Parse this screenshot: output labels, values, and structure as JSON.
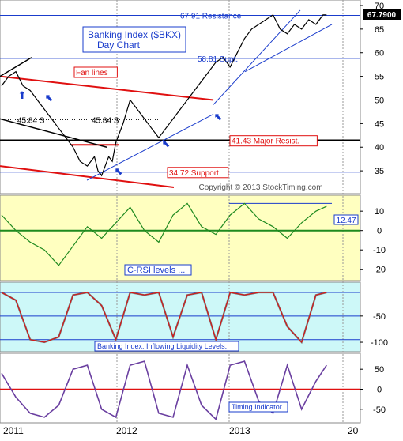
{
  "title_box": {
    "line1": "Banking Index ($BKX)",
    "line2": "Day Chart"
  },
  "copyright": "Copyright © 2013 StockTiming.com",
  "last_price": "67.7900",
  "x_axis": {
    "labels": [
      "2011",
      "2012",
      "2013",
      "20"
    ]
  },
  "colors": {
    "price": "#000000",
    "crsi": "#1f8a1f",
    "flow_red": "#e01010",
    "flow_grey": "#777777",
    "timing": "#6a3fa0",
    "trend": "#1a3ccc",
    "fan": "#e01010",
    "major": "#000000",
    "panel_yellow": "#ffffc0",
    "panel_cyan": "#cdf8f8"
  },
  "chart_data": [
    {
      "type": "line",
      "name": "price_panel",
      "y_ticks": [
        35,
        40,
        45,
        50,
        55,
        60,
        65,
        70
      ],
      "ylim": [
        30.5,
        70.5
      ],
      "xlim": [
        0,
        100
      ],
      "series": [
        {
          "name": "$BKX",
          "x": [
            0,
            2,
            4,
            6,
            8,
            10,
            12,
            14,
            16,
            18,
            20,
            22,
            24,
            26,
            27,
            28,
            29,
            30,
            31,
            32,
            34,
            36,
            38,
            40,
            42,
            44,
            46,
            48,
            50,
            52,
            54,
            56,
            58,
            60,
            62,
            64,
            66,
            68,
            70,
            72,
            74,
            76,
            78,
            80,
            82,
            84,
            86,
            88,
            90,
            91
          ],
          "y": [
            53,
            55,
            56,
            53,
            52,
            50,
            48,
            46,
            44,
            42,
            40,
            37,
            36,
            38,
            35,
            34,
            36,
            38,
            37,
            41,
            45,
            50,
            48,
            46,
            44,
            42,
            44,
            46,
            48,
            50,
            52,
            54,
            56,
            58,
            59,
            57,
            60,
            63,
            65,
            66,
            67,
            68,
            65,
            64,
            66,
            65,
            67,
            66,
            68,
            68
          ]
        }
      ],
      "annotations": [
        {
          "label": "67.91 Resistance",
          "y": 67.91
        },
        {
          "label": "58.81 Supt.",
          "y": 58.81
        },
        {
          "label": "45.84 S",
          "y": 45.84
        },
        {
          "label": "45.84 S",
          "y": 45.84
        },
        {
          "label": "41.43 Major Resist.",
          "y": 41.43
        },
        {
          "label": "34.72 Support",
          "y": 34.72
        },
        {
          "label": "Fan lines",
          "y": null
        }
      ]
    },
    {
      "type": "line",
      "name": "crsi_panel",
      "y_ticks": [
        -20,
        -10,
        0,
        10
      ],
      "ylim": [
        -25,
        17
      ],
      "last_value": "12.47",
      "series": [
        {
          "name": "C-RSI",
          "x": [
            0,
            4,
            8,
            12,
            16,
            20,
            24,
            28,
            32,
            36,
            40,
            44,
            48,
            52,
            56,
            60,
            64,
            68,
            72,
            76,
            80,
            84,
            88,
            91
          ],
          "y": [
            8,
            0,
            -6,
            -10,
            -18,
            -8,
            2,
            -4,
            4,
            12,
            0,
            -6,
            8,
            14,
            2,
            -2,
            8,
            14,
            6,
            2,
            -4,
            4,
            10,
            12.47
          ]
        }
      ],
      "annotations": [
        {
          "label": "C-RSI levels ..."
        }
      ]
    },
    {
      "type": "line",
      "name": "liquidity_panel",
      "y_ticks": [
        -50,
        -100
      ],
      "ylim": [
        -115,
        10
      ],
      "series": [
        {
          "name": "Inflow",
          "x": [
            0,
            4,
            8,
            12,
            16,
            20,
            24,
            28,
            32,
            36,
            40,
            44,
            48,
            52,
            56,
            60,
            64,
            68,
            72,
            76,
            80,
            84,
            88,
            91
          ],
          "y": [
            -5,
            -20,
            -95,
            -100,
            -90,
            -10,
            -5,
            -30,
            -95,
            -5,
            -10,
            -5,
            -90,
            -10,
            -5,
            -95,
            -5,
            -10,
            -5,
            -5,
            -70,
            -100,
            -10,
            -5
          ]
        }
      ],
      "annotations": [
        {
          "label": "Banking Index: Inflowing Liquidity Levels."
        }
      ]
    },
    {
      "type": "line",
      "name": "timing_panel",
      "y_ticks": [
        50,
        0,
        -50
      ],
      "ylim": [
        -80,
        80
      ],
      "series": [
        {
          "name": "Timing",
          "x": [
            0,
            4,
            8,
            12,
            16,
            20,
            24,
            28,
            32,
            36,
            40,
            44,
            48,
            52,
            56,
            60,
            64,
            68,
            72,
            76,
            80,
            84,
            88,
            91
          ],
          "y": [
            40,
            -20,
            -60,
            -70,
            -40,
            50,
            60,
            -50,
            -70,
            60,
            70,
            -60,
            -70,
            60,
            -40,
            -75,
            60,
            70,
            -30,
            -60,
            60,
            -50,
            20,
            60
          ]
        }
      ],
      "annotations": [
        {
          "label": "Timing Indicator"
        }
      ]
    }
  ]
}
